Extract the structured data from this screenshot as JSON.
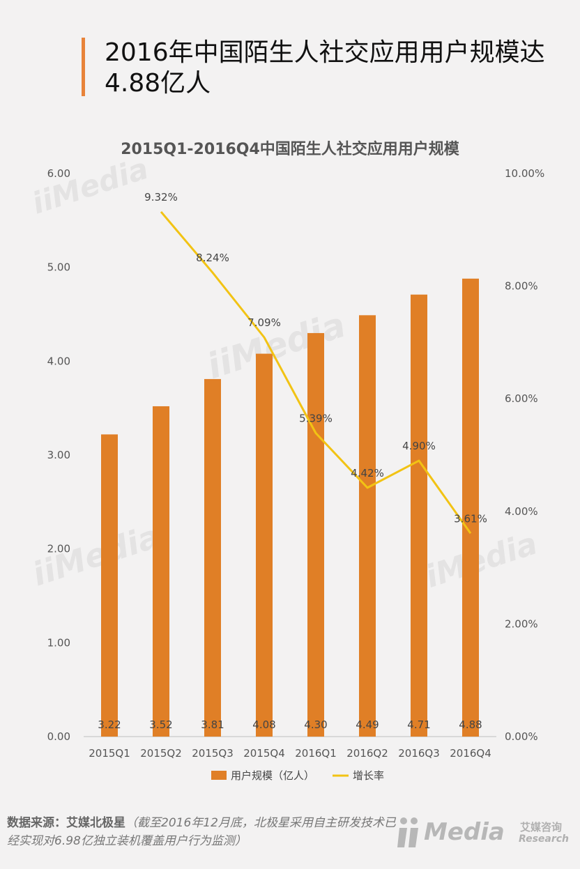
{
  "header": {
    "title": "2016年中国陌生人社交应用用户规模达4.88亿人"
  },
  "chart_data": {
    "type": "bar",
    "title": "2015Q1-2016Q4中国陌生人社交应用用户规模",
    "categories": [
      "2015Q1",
      "2015Q2",
      "2015Q3",
      "2015Q4",
      "2016Q1",
      "2016Q2",
      "2016Q3",
      "2016Q4"
    ],
    "series": [
      {
        "name": "用户规模（亿人）",
        "type": "bar",
        "axis": "left",
        "values": [
          3.22,
          3.52,
          3.81,
          4.08,
          4.3,
          4.49,
          4.71,
          4.88
        ],
        "labels": [
          "3.22",
          "3.52",
          "3.81",
          "4.08",
          "4.30",
          "4.49",
          "4.71",
          "4.88"
        ],
        "color": "#e07f26"
      },
      {
        "name": "增长率",
        "type": "line",
        "axis": "right",
        "values": [
          null,
          9.32,
          8.24,
          7.09,
          5.39,
          4.42,
          4.9,
          3.61
        ],
        "labels": [
          "",
          "9.32%",
          "8.24%",
          "7.09%",
          "5.39%",
          "4.42%",
          "4.90%",
          "3.61%"
        ],
        "color": "#f2c314"
      }
    ],
    "y_left": {
      "min": 0,
      "max": 6,
      "ticks": [
        "0.00",
        "1.00",
        "2.00",
        "3.00",
        "4.00",
        "5.00",
        "6.00"
      ]
    },
    "y_right": {
      "min": 0,
      "max": 10,
      "ticks": [
        "0.00%",
        "2.00%",
        "4.00%",
        "6.00%",
        "8.00%",
        "10.00%"
      ]
    },
    "grid": false,
    "legend": "bottom"
  },
  "source": {
    "label": "数据来源：艾媒北极星",
    "note": "（截至2016年12月底，北极星采用自主研发技术已经实现对6.98亿独立装机覆盖用户行为监测）"
  },
  "logo": {
    "word": "Media",
    "cn": "艾媒咨询",
    "en": "Research"
  },
  "watermark": {
    "text": "iiMedia"
  }
}
